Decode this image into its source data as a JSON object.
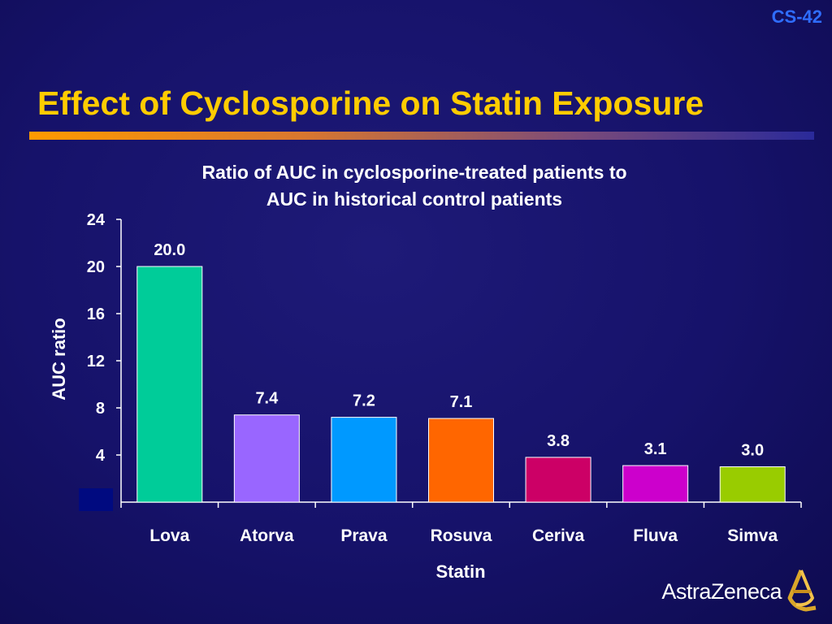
{
  "slide": {
    "id": "CS-42",
    "title": "Effect of Cyclosporine on Statin Exposure",
    "logo_text": "AstraZeneca"
  },
  "colors": {
    "title": "#ffcc00",
    "slide_id": "#2f6dff",
    "background": "#16126a"
  },
  "chart_data": {
    "type": "bar",
    "title_lines": [
      "Ratio of AUC in cyclosporine-treated patients to",
      "AUC in historical control patients"
    ],
    "xlabel": "Statin",
    "ylabel": "AUC ratio",
    "categories": [
      "Lova",
      "Atorva",
      "Prava",
      "Rosuva",
      "Ceriva",
      "Fluva",
      "Simva"
    ],
    "values": [
      20.0,
      7.4,
      7.2,
      7.1,
      3.8,
      3.1,
      3.0
    ],
    "value_labels": [
      "20.0",
      "7.4",
      "7.2",
      "7.1",
      "3.8",
      "3.1",
      "3.0"
    ],
    "bar_colors": [
      "#00cc99",
      "#9966ff",
      "#0099ff",
      "#ff6600",
      "#cc0066",
      "#cc00cc",
      "#99cc00"
    ],
    "ylim": [
      0,
      24
    ],
    "yticks": [
      4,
      8,
      12,
      16,
      20,
      24
    ],
    "ytick_labels": [
      "4",
      "8",
      "12",
      "16",
      "20",
      "24"
    ],
    "grid": false,
    "legend": "none"
  }
}
